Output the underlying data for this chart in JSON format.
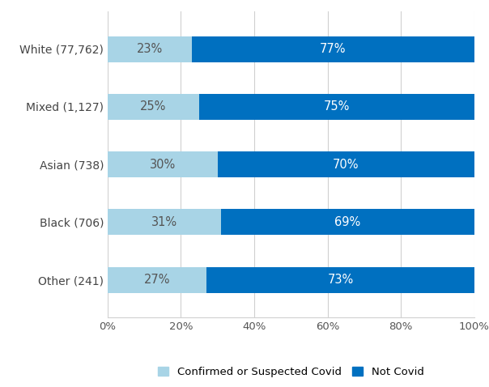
{
  "categories": [
    "White (77,762)",
    "Mixed (1,127)",
    "Asian (738)",
    "Black (706)",
    "Other (241)"
  ],
  "covid_pct": [
    23,
    25,
    30,
    31,
    27
  ],
  "not_covid_pct": [
    77,
    75,
    70,
    69,
    73
  ],
  "covid_color": "#a8d4e6",
  "not_covid_color": "#0070c0",
  "text_color_covid": "#555555",
  "text_color_not_covid": "#ffffff",
  "xlabel_ticks": [
    0,
    20,
    40,
    60,
    80,
    100
  ],
  "xlabel_tick_labels": [
    "0%",
    "20%",
    "40%",
    "60%",
    "80%",
    "100%"
  ],
  "legend_label_covid": "Confirmed or Suspected Covid",
  "legend_label_not_covid": "Not Covid",
  "bar_height": 0.45,
  "background_color": "#ffffff",
  "text_fontsize": 10.5,
  "label_fontsize": 9.5,
  "legend_fontsize": 9.5,
  "yticklabel_fontsize": 10
}
